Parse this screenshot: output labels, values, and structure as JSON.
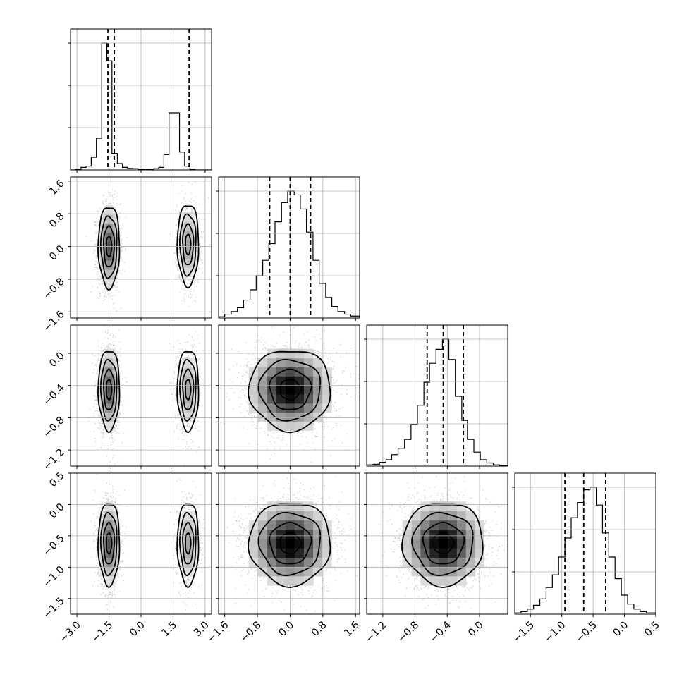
{
  "chart_data": {
    "type": "corner",
    "parameters": [
      {
        "range": [
          -3.3,
          3.3
        ],
        "ticks": [
          -3.0,
          -1.5,
          0.0,
          1.5,
          3.0
        ],
        "tick_labels": [
          "−3.0",
          "−1.5",
          "0.0",
          "1.5",
          "3.0"
        ],
        "quantiles": [
          -1.55,
          -1.25,
          2.25
        ],
        "hist_edges": [
          -3.3,
          -3.06,
          -2.81,
          -2.57,
          -2.33,
          -2.09,
          -1.84,
          -1.6,
          -1.36,
          -1.11,
          -0.87,
          -0.63,
          -0.39,
          -0.14,
          0.1,
          0.34,
          0.59,
          0.83,
          1.07,
          1.31,
          1.56,
          1.8,
          2.04,
          2.29,
          2.53,
          2.77,
          3.01,
          3.3
        ],
        "hist_values": [
          0,
          0.005,
          0.02,
          0.03,
          0.1,
          0.25,
          1.0,
          0.86,
          0.13,
          0.05,
          0.02,
          0.012,
          0.01,
          0.005,
          0.003,
          0.003,
          0.01,
          0.02,
          0.12,
          0.45,
          0.45,
          0.14,
          0.03,
          0.005,
          0,
          0,
          0
        ]
      },
      {
        "range": [
          -1.75,
          1.7
        ],
        "ticks": [
          -1.6,
          -0.8,
          0.0,
          0.8,
          1.6
        ],
        "tick_labels": [
          "−1.6",
          "−0.8",
          "0.0",
          "0.8",
          "1.6"
        ],
        "quantiles": [
          -0.5,
          0.0,
          0.5
        ],
        "hist_edges": [
          -1.75,
          -1.6,
          -1.44,
          -1.29,
          -1.14,
          -0.98,
          -0.83,
          -0.67,
          -0.52,
          -0.37,
          -0.21,
          -0.06,
          0.1,
          0.25,
          0.4,
          0.56,
          0.71,
          0.87,
          1.02,
          1.17,
          1.33,
          1.48,
          1.7
        ],
        "hist_values": [
          0.01,
          0.03,
          0.05,
          0.08,
          0.14,
          0.22,
          0.33,
          0.45,
          0.58,
          0.75,
          0.9,
          0.99,
          0.96,
          0.85,
          0.67,
          0.45,
          0.27,
          0.16,
          0.09,
          0.05,
          0.03,
          0.015
        ]
      },
      {
        "range": [
          -1.4,
          0.35
        ],
        "ticks": [
          -1.2,
          -0.8,
          -0.4,
          0.0
        ],
        "tick_labels": [
          "−1.2",
          "−0.8",
          "−0.4",
          "0.0"
        ],
        "quantiles": [
          -0.65,
          -0.45,
          -0.2
        ],
        "hist_edges": [
          -1.4,
          -1.32,
          -1.24,
          -1.16,
          -1.09,
          -1.01,
          -0.93,
          -0.85,
          -0.77,
          -0.69,
          -0.62,
          -0.54,
          -0.46,
          -0.38,
          -0.3,
          -0.22,
          -0.15,
          -0.07,
          0.01,
          0.09,
          0.17,
          0.25,
          0.35
        ],
        "hist_values": [
          0.01,
          0.015,
          0.03,
          0.05,
          0.09,
          0.14,
          0.21,
          0.33,
          0.48,
          0.66,
          0.81,
          0.92,
          1.0,
          0.84,
          0.55,
          0.36,
          0.21,
          0.11,
          0.05,
          0.025,
          0.01,
          0.005
        ]
      },
      {
        "range": [
          -1.75,
          0.5
        ],
        "ticks": [
          -1.5,
          -1.0,
          -0.5,
          0.0,
          0.5
        ],
        "tick_labels": [
          "−1.5",
          "−1.0",
          "−0.5",
          "0.0",
          "0.5"
        ],
        "quantiles": [
          -0.95,
          -0.65,
          -0.3
        ],
        "hist_edges": [
          -1.75,
          -1.65,
          -1.55,
          -1.45,
          -1.35,
          -1.25,
          -1.15,
          -1.05,
          -0.95,
          -0.85,
          -0.75,
          -0.65,
          -0.55,
          -0.45,
          -0.35,
          -0.25,
          -0.15,
          -0.05,
          0.05,
          0.15,
          0.25,
          0.35,
          0.5
        ],
        "hist_values": [
          0.01,
          0.02,
          0.04,
          0.07,
          0.12,
          0.21,
          0.31,
          0.45,
          0.6,
          0.76,
          0.88,
          0.98,
          1.0,
          0.86,
          0.64,
          0.45,
          0.28,
          0.15,
          0.08,
          0.04,
          0.02,
          0.01
        ]
      }
    ],
    "pairs": [
      {
        "row": 1,
        "col": 0,
        "clusters": [
          {
            "cx": -1.5,
            "sx": 0.25,
            "cy": 0.0,
            "sy": 0.5,
            "w": 0.65
          },
          {
            "cx": 2.2,
            "sx": 0.25,
            "cy": 0.05,
            "sy": 0.5,
            "w": 0.35
          }
        ]
      },
      {
        "row": 2,
        "col": 0,
        "clusters": [
          {
            "cx": -1.5,
            "sx": 0.25,
            "cy": -0.45,
            "sy": 0.25,
            "w": 0.65
          },
          {
            "cx": 2.2,
            "sx": 0.25,
            "cy": -0.45,
            "sy": 0.25,
            "w": 0.35
          }
        ]
      },
      {
        "row": 2,
        "col": 1,
        "clusters": [
          {
            "cx": 0.0,
            "sx": 0.5,
            "cy": -0.45,
            "sy": 0.25,
            "w": 1.0
          }
        ]
      },
      {
        "row": 3,
        "col": 0,
        "clusters": [
          {
            "cx": -1.5,
            "sx": 0.25,
            "cy": -0.62,
            "sy": 0.33,
            "w": 0.65
          },
          {
            "cx": 2.2,
            "sx": 0.25,
            "cy": -0.62,
            "sy": 0.33,
            "w": 0.35
          }
        ]
      },
      {
        "row": 3,
        "col": 1,
        "clusters": [
          {
            "cx": 0.0,
            "sx": 0.5,
            "cy": -0.62,
            "sy": 0.33,
            "w": 1.0
          }
        ]
      },
      {
        "row": 3,
        "col": 2,
        "clusters": [
          {
            "cx": -0.45,
            "sx": 0.25,
            "cy": -0.62,
            "sy": 0.33,
            "w": 1.0
          }
        ]
      }
    ],
    "contour_levels_sigma": [
      0.5,
      1.0,
      1.5,
      2.0
    ],
    "grid": true
  }
}
